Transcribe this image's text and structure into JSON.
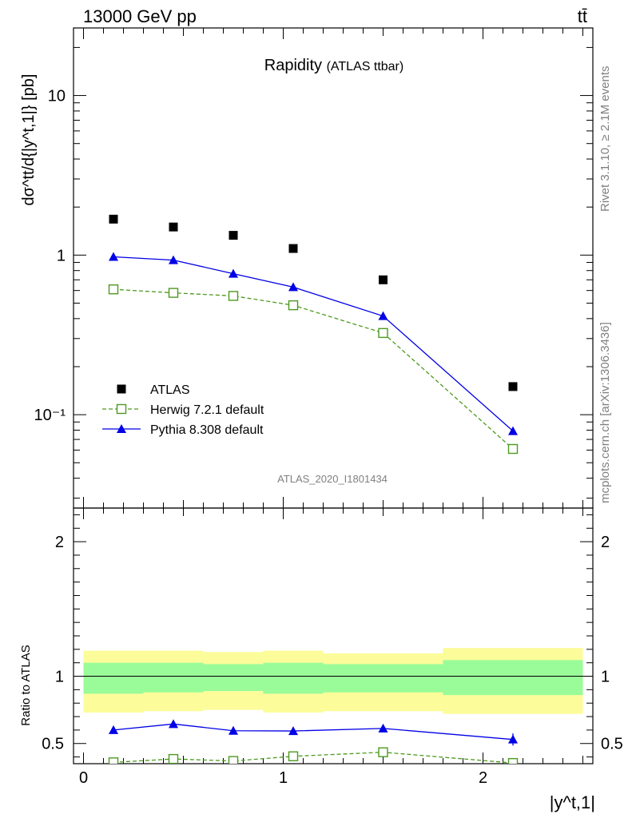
{
  "header": {
    "left": "13000 GeV pp",
    "right": "tt̄"
  },
  "side_text": {
    "rivet": "Rivet 3.1.10, ≥ 2.1M events",
    "mcplots": "mcplots.cern.ch [arXiv:1306.3436]"
  },
  "chart_data": [
    {
      "type": "scatter",
      "title": "Rapidity",
      "subtitle": "(ATLAS ttbar)",
      "ylabel": "dσ^tt/d{|y^t,1|} [pb]",
      "yscale": "log",
      "xlim": [
        -0.05,
        2.55
      ],
      "ylim": [
        0.026,
        26.5
      ],
      "yticks": [
        {
          "value": 0.1,
          "label": "10⁻¹"
        },
        {
          "value": 1,
          "label": "1"
        },
        {
          "value": 10,
          "label": "10"
        }
      ],
      "watermark": "ATLAS_2020_I1801434",
      "legend_position": "bottom-left",
      "series": [
        {
          "name": "ATLAS",
          "style": "black-square",
          "color": "#000000",
          "x": [
            0.15,
            0.45,
            0.75,
            1.05,
            1.5,
            2.15
          ],
          "y": [
            1.68,
            1.5,
            1.33,
            1.1,
            0.7,
            0.15
          ]
        },
        {
          "name": "Herwig 7.2.1 default",
          "style": "open-square-dashed",
          "color": "#4d9a1f",
          "x": [
            0.15,
            0.45,
            0.75,
            1.05,
            1.5,
            2.15
          ],
          "y": [
            0.61,
            0.58,
            0.555,
            0.485,
            0.325,
            0.061
          ]
        },
        {
          "name": "Pythia 8.308 default",
          "style": "filled-triangle-solid",
          "color": "#0000e6",
          "x": [
            0.15,
            0.45,
            0.75,
            1.05,
            1.5,
            2.15
          ],
          "y": [
            0.975,
            0.93,
            0.765,
            0.63,
            0.415,
            0.079
          ]
        }
      ]
    },
    {
      "type": "scatter",
      "ylabel": "Ratio to ATLAS",
      "xlabel": "|y^t,1|",
      "xlim": [
        -0.05,
        2.55
      ],
      "ylim": [
        0.35,
        2.25
      ],
      "xticks": [
        0,
        1,
        2
      ],
      "yticks": [
        0.5,
        1,
        2
      ],
      "reference_line": 1,
      "bands": [
        {
          "x0": 0.0,
          "x1": 0.3,
          "yellow": [
            0.73,
            1.19
          ],
          "green": [
            0.87,
            1.1
          ]
        },
        {
          "x0": 0.3,
          "x1": 0.6,
          "yellow": [
            0.74,
            1.19
          ],
          "green": [
            0.88,
            1.1
          ]
        },
        {
          "x0": 0.6,
          "x1": 0.9,
          "yellow": [
            0.75,
            1.18
          ],
          "green": [
            0.89,
            1.09
          ]
        },
        {
          "x0": 0.9,
          "x1": 1.2,
          "yellow": [
            0.73,
            1.19
          ],
          "green": [
            0.87,
            1.1
          ]
        },
        {
          "x0": 1.2,
          "x1": 1.8,
          "yellow": [
            0.74,
            1.17
          ],
          "green": [
            0.88,
            1.09
          ]
        },
        {
          "x0": 1.8,
          "x1": 2.5,
          "yellow": [
            0.72,
            1.21
          ],
          "green": [
            0.86,
            1.12
          ]
        }
      ],
      "series": [
        {
          "name": "Pythia 8.308 default",
          "color": "#0000e6",
          "x": [
            0.15,
            0.45,
            0.75,
            1.05,
            1.5,
            2.15
          ],
          "y": [
            0.6,
            0.645,
            0.595,
            0.593,
            0.612,
            0.53
          ],
          "err": [
            0.02,
            0.018,
            0.022,
            0.022,
            0.02,
            0.045
          ]
        },
        {
          "name": "Herwig 7.2.1 default",
          "color": "#4d9a1f",
          "x": [
            0.15,
            0.45,
            0.75,
            1.05,
            1.5,
            2.15
          ],
          "y": [
            0.36,
            0.385,
            0.37,
            0.405,
            0.435,
            0.355
          ],
          "err": [
            0.012,
            0.012,
            0.012,
            0.013,
            0.013,
            0.02
          ]
        }
      ]
    }
  ]
}
